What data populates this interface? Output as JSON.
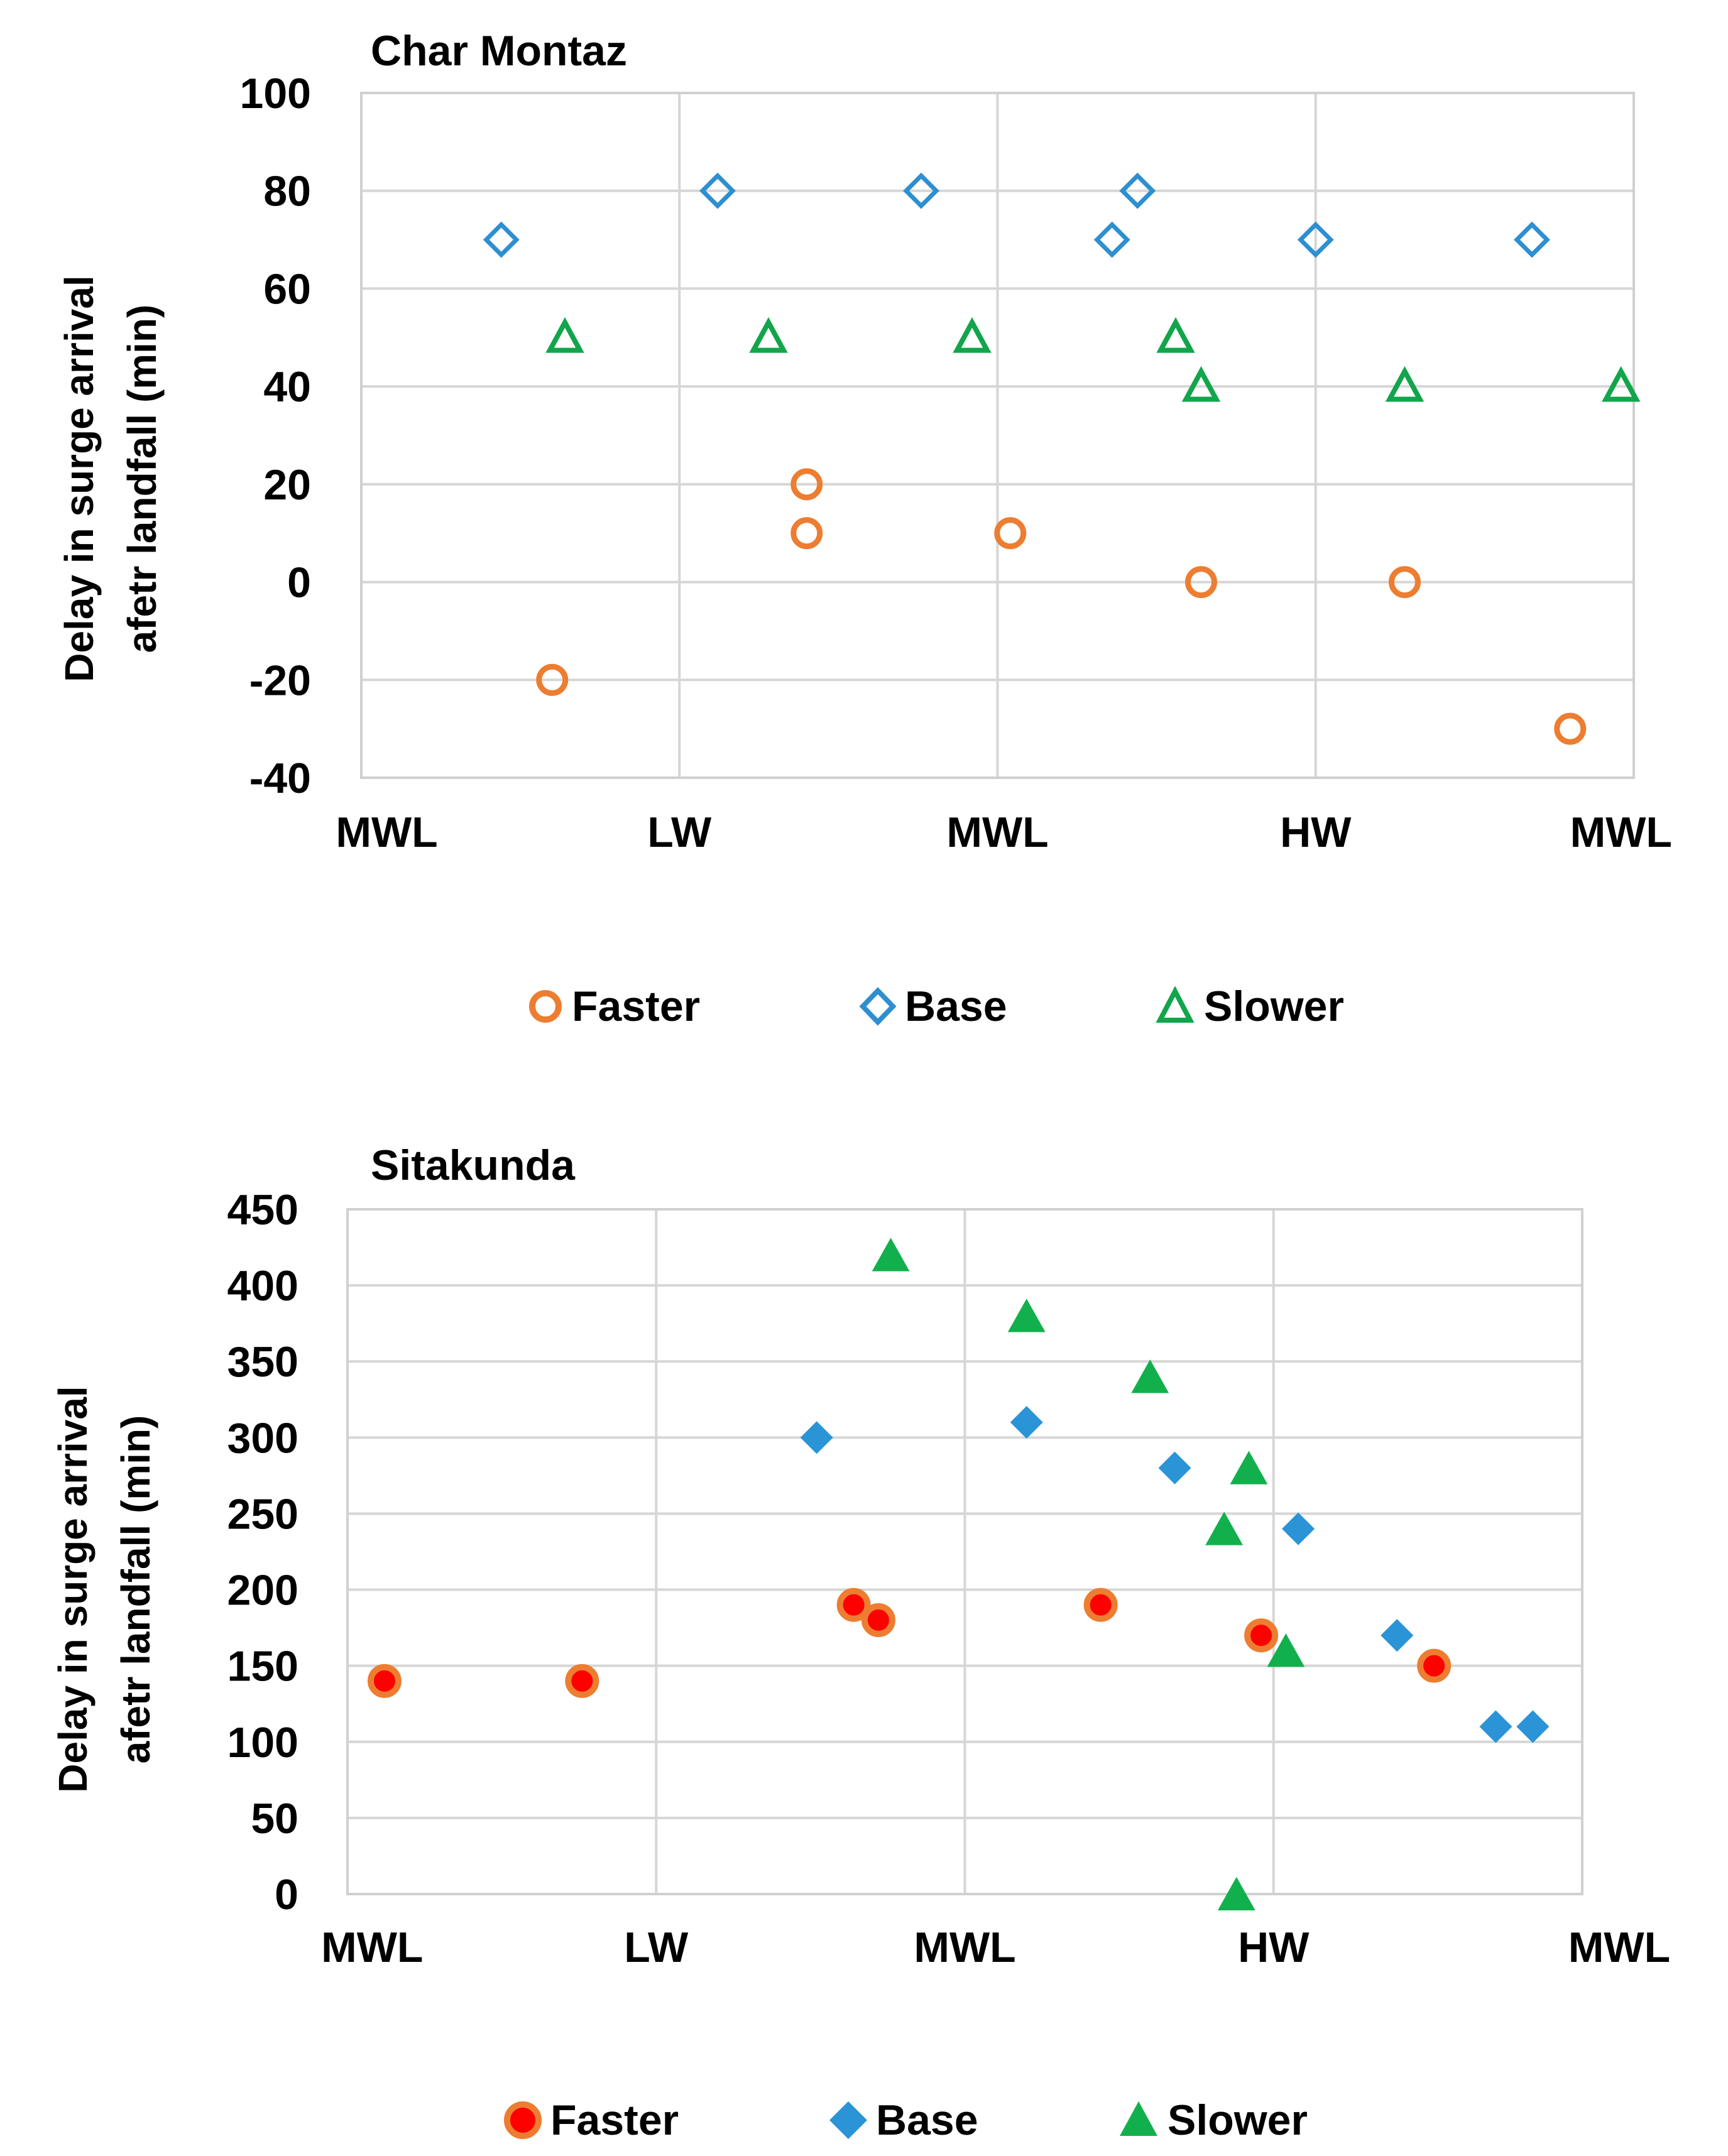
{
  "chart_data": [
    {
      "type": "scatter",
      "title": "Char Montaz",
      "ylabel_line1": "Delay in surge arrival",
      "ylabel_line2": "afetr landfall  (min)",
      "xlabel": "",
      "xlim": [
        0,
        10
      ],
      "ylim": [
        -40,
        100
      ],
      "yticks": [
        100,
        80,
        60,
        40,
        20,
        0,
        -20,
        -40
      ],
      "xgrid_positions": [
        0,
        2.5,
        5,
        7.5,
        10
      ],
      "xtick_labels": [
        {
          "x": 0.2,
          "label": "MWL"
        },
        {
          "x": 2.5,
          "label": "LW"
        },
        {
          "x": 5,
          "label": "MWL"
        },
        {
          "x": 7.5,
          "label": "HW"
        },
        {
          "x": 9.9,
          "label": "MWL"
        }
      ],
      "grid": true,
      "legend": "bottom",
      "series": [
        {
          "name": "Faster",
          "marker": "circle-open",
          "color": "#ED7D31",
          "points": [
            [
              1.5,
              -20
            ],
            [
              3.5,
              20
            ],
            [
              3.5,
              10
            ],
            [
              5.1,
              10
            ],
            [
              6.6,
              0
            ],
            [
              8.2,
              0
            ],
            [
              9.5,
              -30
            ]
          ]
        },
        {
          "name": "Base",
          "marker": "diamond-open",
          "color": "#2E8FD0",
          "points": [
            [
              1.1,
              70
            ],
            [
              2.8,
              80
            ],
            [
              4.4,
              80
            ],
            [
              5.9,
              70
            ],
            [
              6.1,
              80
            ],
            [
              7.5,
              70
            ],
            [
              9.2,
              70
            ]
          ]
        },
        {
          "name": "Slower",
          "marker": "triangle-open",
          "color": "#12A54B",
          "points": [
            [
              1.6,
              50
            ],
            [
              3.2,
              50
            ],
            [
              4.8,
              50
            ],
            [
              6.4,
              50
            ],
            [
              6.6,
              40
            ],
            [
              8.2,
              40
            ],
            [
              9.9,
              40
            ]
          ]
        }
      ]
    },
    {
      "type": "scatter",
      "title": "Sitakunda",
      "ylabel_line1": "Delay in surge arrival",
      "ylabel_line2": "afetr landfall  (min)",
      "xlabel": "",
      "xlim": [
        0,
        10
      ],
      "ylim": [
        0,
        450
      ],
      "yticks": [
        450,
        400,
        350,
        300,
        250,
        200,
        150,
        100,
        50,
        0
      ],
      "xgrid_positions": [
        0,
        2.5,
        5,
        7.5,
        10
      ],
      "xtick_labels": [
        {
          "x": 0.2,
          "label": "MWL"
        },
        {
          "x": 2.5,
          "label": "LW"
        },
        {
          "x": 5,
          "label": "MWL"
        },
        {
          "x": 7.5,
          "label": "HW"
        },
        {
          "x": 10.3,
          "label": "MWL"
        }
      ],
      "grid": true,
      "legend": "bottom",
      "series": [
        {
          "name": "Faster",
          "marker": "circle-filled-ringed",
          "color": "#FF0000",
          "ring_color": "#ED7D31",
          "points": [
            [
              0.3,
              140
            ],
            [
              1.9,
              140
            ],
            [
              4.1,
              190
            ],
            [
              4.3,
              180
            ],
            [
              6.1,
              190
            ],
            [
              7.4,
              170
            ],
            [
              8.8,
              150
            ]
          ]
        },
        {
          "name": "Base",
          "marker": "diamond-filled",
          "color": "#2A94D6",
          "points": [
            [
              3.8,
              300
            ],
            [
              5.5,
              310
            ],
            [
              6.7,
              280
            ],
            [
              7.7,
              240
            ],
            [
              8.5,
              170
            ],
            [
              9.3,
              110
            ],
            [
              9.6,
              110
            ]
          ]
        },
        {
          "name": "Slower",
          "marker": "triangle-filled",
          "color": "#12B04C",
          "points": [
            [
              4.4,
              420
            ],
            [
              5.5,
              380
            ],
            [
              6.5,
              340
            ],
            [
              7.3,
              280
            ],
            [
              7.1,
              240
            ],
            [
              7.6,
              160
            ],
            [
              7.2,
              0
            ]
          ]
        }
      ]
    }
  ]
}
